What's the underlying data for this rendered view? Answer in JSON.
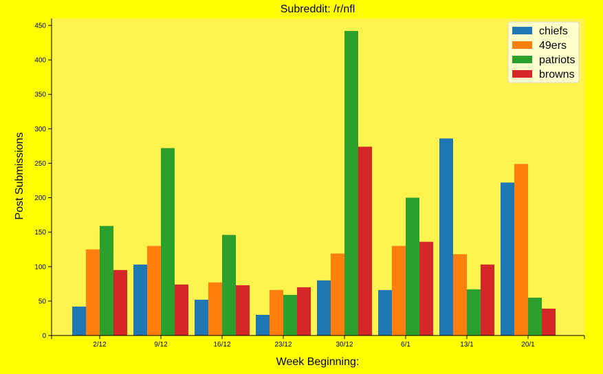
{
  "chart_data": {
    "type": "bar",
    "title": "Subreddit: /r/nfl",
    "xlabel": "Week Beginning:",
    "ylabel": "Post Submissions",
    "categories": [
      "2/12",
      "9/12",
      "16/12",
      "23/12",
      "30/12",
      "6/1",
      "13/1",
      "20/1"
    ],
    "ylim": [
      0,
      460
    ],
    "yticks": [
      0,
      50,
      100,
      150,
      200,
      250,
      300,
      350,
      400,
      450
    ],
    "legend_position": "top-right",
    "grid": false,
    "series": [
      {
        "name": "chiefs",
        "color": "#1f77b4",
        "values": [
          42,
          103,
          52,
          30,
          80,
          66,
          286,
          222
        ]
      },
      {
        "name": "49ers",
        "color": "#ff7f0e",
        "values": [
          125,
          130,
          77,
          66,
          119,
          130,
          118,
          249
        ]
      },
      {
        "name": "patriots",
        "color": "#2ca02c",
        "values": [
          159,
          272,
          146,
          59,
          442,
          200,
          67,
          55
        ]
      },
      {
        "name": "browns",
        "color": "#d62728",
        "values": [
          95,
          74,
          73,
          70,
          274,
          136,
          103,
          39
        ]
      }
    ],
    "colors": {
      "page_background": "#ffff00",
      "plot_background": "#fff44f"
    }
  }
}
